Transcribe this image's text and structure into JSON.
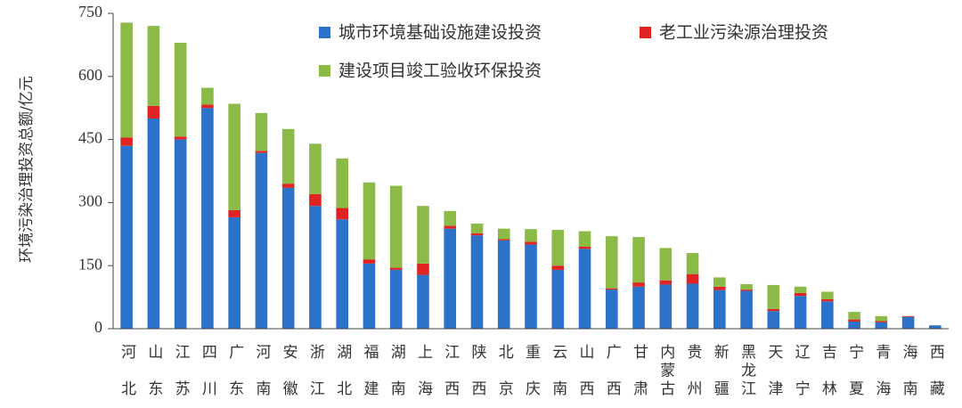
{
  "chart_data": {
    "type": "stacked_bar",
    "y_label": "环境污染治理投资总额/亿元",
    "categories": [
      "河北",
      "山东",
      "江苏",
      "四川",
      "广东",
      "河南",
      "安徽",
      "浙江",
      "湖北",
      "福建",
      "湖南",
      "上海",
      "江西",
      "陕西",
      "北京",
      "重庆",
      "云南",
      "山西",
      "广西",
      "甘肃",
      "内蒙古",
      "贵州",
      "新疆",
      "黑龙江",
      "天津",
      "辽宁",
      "吉林",
      "宁夏",
      "青海",
      "海南",
      "西藏"
    ],
    "series": [
      {
        "name": "城市环境基础设施建设投资",
        "color": "#2b72c8",
        "values": [
          435,
          500,
          450,
          525,
          265,
          418,
          335,
          292,
          260,
          155,
          140,
          128,
          238,
          222,
          210,
          200,
          140,
          190,
          93,
          100,
          105,
          107,
          92,
          90,
          42,
          78,
          65,
          17,
          15,
          28,
          8
        ]
      },
      {
        "name": "老工业污染源治理投资",
        "color": "#e02424",
        "values": [
          20,
          30,
          7,
          8,
          17,
          5,
          10,
          28,
          27,
          10,
          5,
          27,
          7,
          5,
          3,
          7,
          10,
          5,
          3,
          10,
          10,
          23,
          8,
          3,
          5,
          7,
          5,
          5,
          3,
          2,
          0
        ]
      },
      {
        "name": "建设项目竣工验收环保投资",
        "color": "#8cba47",
        "values": [
          273,
          190,
          223,
          40,
          253,
          90,
          130,
          120,
          118,
          183,
          195,
          137,
          35,
          23,
          25,
          30,
          85,
          37,
          124,
          108,
          77,
          50,
          22,
          13,
          57,
          15,
          18,
          18,
          12,
          0,
          0
        ]
      }
    ],
    "ylim": [
      0,
      750
    ],
    "yticks": [
      0,
      150,
      300,
      450,
      600,
      750
    ]
  }
}
